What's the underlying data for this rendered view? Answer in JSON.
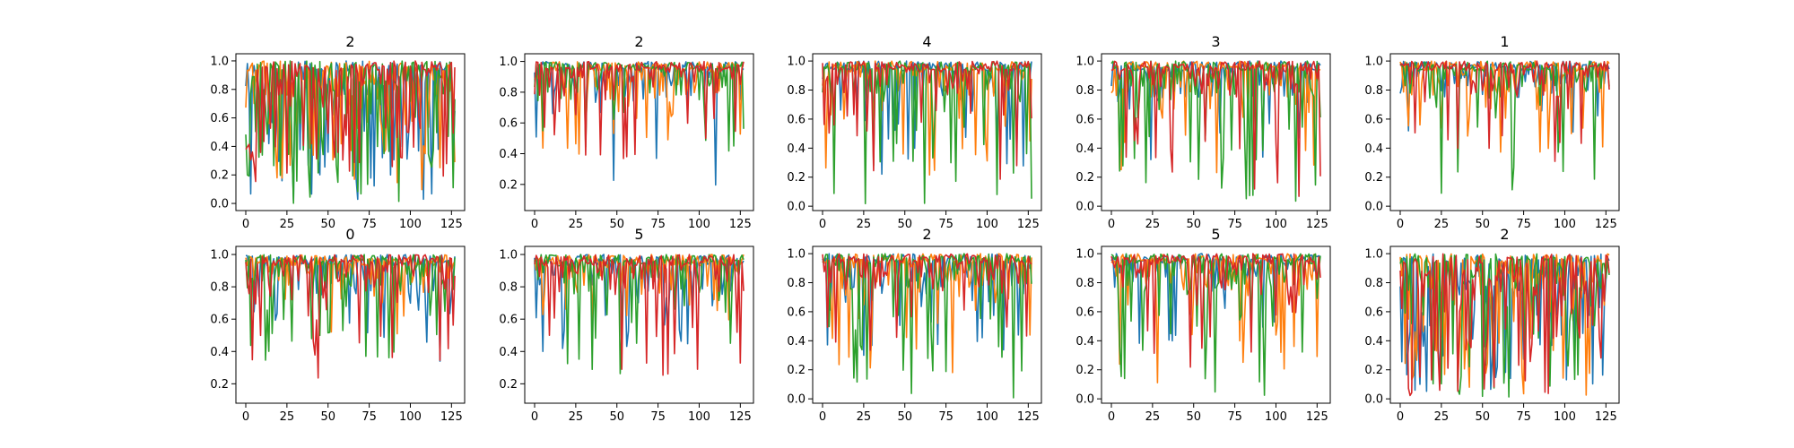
{
  "chart_data": [
    {
      "type": "line",
      "title": "2",
      "xlabel": "",
      "ylabel": "",
      "xlim": [
        -6,
        133
      ],
      "ylim": [
        -0.05,
        1.05
      ],
      "xticks": [
        0,
        25,
        50,
        75,
        100,
        125
      ],
      "yticks": [
        0.0,
        0.2,
        0.4,
        0.6,
        0.8,
        1.0
      ],
      "x": "integer steps 0-127",
      "series": [
        {
          "color": "#1f77b4",
          "pattern": "rapid oscillation, dips to ~0.02"
        },
        {
          "color": "#ff7f0e",
          "pattern": "rapid oscillation, dips to ~0.07"
        },
        {
          "color": "#2ca02c",
          "pattern": "rapid oscillation, dips to ~0.0"
        },
        {
          "color": "#d62728",
          "pattern": "rapid oscillation, dips to ~0.1"
        }
      ]
    },
    {
      "type": "line",
      "title": "2",
      "xlabel": "",
      "ylabel": "",
      "xlim": [
        -6,
        133
      ],
      "ylim": [
        0.03,
        1.05
      ],
      "xticks": [
        0,
        25,
        50,
        75,
        100,
        125
      ],
      "yticks": [
        0.2,
        0.4,
        0.6,
        0.8,
        1.0
      ],
      "x": "integer steps 0-127",
      "series": [
        {
          "color": "#1f77b4",
          "pattern": "mostly near 1.0, dips to ~0.09 near x=122"
        },
        {
          "color": "#ff7f0e",
          "pattern": "mostly 0.8-1.0, dips to ~0.33"
        },
        {
          "color": "#2ca02c",
          "pattern": "mostly 0.8-1.0, dips to ~0.3"
        },
        {
          "color": "#d62728",
          "pattern": "mostly 0.8-1.0, dips to ~0.36"
        }
      ]
    },
    {
      "type": "line",
      "title": "4",
      "xlabel": "",
      "ylabel": "",
      "xlim": [
        -6,
        133
      ],
      "ylim": [
        -0.03,
        1.05
      ],
      "xticks": [
        0,
        25,
        50,
        75,
        100,
        125
      ],
      "yticks": [
        0.0,
        0.2,
        0.4,
        0.6,
        0.8,
        1.0
      ],
      "x": "integer steps 0-127",
      "series": [
        {
          "color": "#1f77b4",
          "pattern": "mostly 0.6-1.0, dips to ~0.2"
        },
        {
          "color": "#ff7f0e",
          "pattern": "mostly 0.6-1.0, dips to ~0.2"
        },
        {
          "color": "#2ca02c",
          "pattern": "frequent deep dips to ~0.0"
        },
        {
          "color": "#d62728",
          "pattern": "mostly 0.6-1.0, dips to ~0.15"
        }
      ]
    },
    {
      "type": "line",
      "title": "3",
      "xlabel": "",
      "ylabel": "",
      "xlim": [
        -6,
        133
      ],
      "ylim": [
        -0.03,
        1.05
      ],
      "xticks": [
        0,
        25,
        50,
        75,
        100,
        125
      ],
      "yticks": [
        0.0,
        0.2,
        0.4,
        0.6,
        0.8,
        1.0
      ],
      "x": "integer steps 0-127",
      "series": [
        {
          "color": "#1f77b4",
          "pattern": "mostly 0.6-1.0, dips to ~0.3"
        },
        {
          "color": "#ff7f0e",
          "pattern": "mostly 0.6-1.0, dips to ~0.23"
        },
        {
          "color": "#2ca02c",
          "pattern": "deep dips to ~0.0 early, then 0.3-1.0"
        },
        {
          "color": "#d62728",
          "pattern": "dips to ~0.0 at start, then 0.4-1.0"
        }
      ]
    },
    {
      "type": "line",
      "title": "1",
      "xlabel": "",
      "ylabel": "",
      "xlim": [
        -6,
        133
      ],
      "ylim": [
        -0.03,
        1.05
      ],
      "xticks": [
        0,
        25,
        50,
        75,
        100,
        125
      ],
      "yticks": [
        0.0,
        0.2,
        0.4,
        0.6,
        0.8,
        1.0
      ],
      "x": "integer steps 0-127",
      "series": [
        {
          "color": "#1f77b4",
          "pattern": "mostly 0.8-1.0, dips to ~0.4"
        },
        {
          "color": "#ff7f0e",
          "pattern": "mostly 0.8-1.0, dips to ~0.25"
        },
        {
          "color": "#2ca02c",
          "pattern": "dips to ~0.0 at start, then near 1.0"
        },
        {
          "color": "#d62728",
          "pattern": "dips to ~0.25 early, then near 1.0"
        }
      ]
    },
    {
      "type": "line",
      "title": "0",
      "xlabel": "",
      "ylabel": "",
      "xlim": [
        -6,
        133
      ],
      "ylim": [
        0.08,
        1.05
      ],
      "xticks": [
        0,
        25,
        50,
        75,
        100,
        125
      ],
      "yticks": [
        0.2,
        0.4,
        0.6,
        0.8,
        1.0
      ],
      "x": "integer steps 0-127",
      "series": [
        {
          "color": "#1f77b4",
          "pattern": "dip to ~0.14 at x=0, then 0.6-1.0, dips to ~0.3"
        },
        {
          "color": "#ff7f0e",
          "pattern": "mostly 0.6-1.0, dips to ~0.3"
        },
        {
          "color": "#2ca02c",
          "pattern": "mostly 0.6-1.0, dips to ~0.33"
        },
        {
          "color": "#d62728",
          "pattern": "mostly 0.7-1.0, dips to ~0.22 late"
        }
      ]
    },
    {
      "type": "line",
      "title": "5",
      "xlabel": "",
      "ylabel": "",
      "xlim": [
        -6,
        133
      ],
      "ylim": [
        0.08,
        1.05
      ],
      "xticks": [
        0,
        25,
        50,
        75,
        100,
        125
      ],
      "yticks": [
        0.2,
        0.4,
        0.6,
        0.8,
        1.0
      ],
      "x": "integer steps 0-127",
      "series": [
        {
          "color": "#1f77b4",
          "pattern": "mostly 0.8-1.0, dips to ~0.35"
        },
        {
          "color": "#ff7f0e",
          "pattern": "mostly 0.8-1.0, dips to ~0.5"
        },
        {
          "color": "#2ca02c",
          "pattern": "dips to ~0.15 early, then 0.6-1.0"
        },
        {
          "color": "#d62728",
          "pattern": "dips to ~0.2 early, then 0.7-1.0"
        }
      ]
    },
    {
      "type": "line",
      "title": "2",
      "xlabel": "",
      "ylabel": "",
      "xlim": [
        -6,
        133
      ],
      "ylim": [
        -0.03,
        1.05
      ],
      "xticks": [
        0,
        25,
        50,
        75,
        100,
        125
      ],
      "yticks": [
        0.0,
        0.2,
        0.4,
        0.6,
        0.8,
        1.0
      ],
      "x": "integer steps 0-127",
      "series": [
        {
          "color": "#1f77b4",
          "pattern": "mostly 0.6-1.0, dips to ~0.3"
        },
        {
          "color": "#ff7f0e",
          "pattern": "mostly 0.5-1.0, dips to ~0.17"
        },
        {
          "color": "#2ca02c",
          "pattern": "deep dips to ~0.0 early, later to ~0.3"
        },
        {
          "color": "#d62728",
          "pattern": "mostly 0.5-1.0, dips to ~0.3"
        }
      ]
    },
    {
      "type": "line",
      "title": "5",
      "xlabel": "",
      "ylabel": "",
      "xlim": [
        -6,
        133
      ],
      "ylim": [
        -0.03,
        1.05
      ],
      "xticks": [
        0,
        25,
        50,
        75,
        100,
        125
      ],
      "yticks": [
        0.0,
        0.2,
        0.4,
        0.6,
        0.8,
        1.0
      ],
      "x": "integer steps 0-127",
      "series": [
        {
          "color": "#1f77b4",
          "pattern": "mostly 0.6-1.0, dips to ~0.3"
        },
        {
          "color": "#ff7f0e",
          "pattern": "mostly 0.6-1.0, dips to ~0.1"
        },
        {
          "color": "#2ca02c",
          "pattern": "deep dips to ~0.0 early, later ~0.2"
        },
        {
          "color": "#d62728",
          "pattern": "mostly 0.6-1.0, dips to ~0.2"
        }
      ]
    },
    {
      "type": "line",
      "title": "2",
      "xlabel": "",
      "ylabel": "",
      "xlim": [
        -6,
        133
      ],
      "ylim": [
        -0.03,
        1.05
      ],
      "xticks": [
        0,
        25,
        50,
        75,
        100,
        125
      ],
      "yticks": [
        0.0,
        0.2,
        0.4,
        0.6,
        0.8,
        1.0
      ],
      "x": "integer steps 0-127",
      "series": [
        {
          "color": "#1f77b4",
          "pattern": "rapid oscillation, dips to ~0.05"
        },
        {
          "color": "#ff7f0e",
          "pattern": "rapid oscillation, dips to ~0.02"
        },
        {
          "color": "#2ca02c",
          "pattern": "rapid oscillation, dips to ~0.0"
        },
        {
          "color": "#d62728",
          "pattern": "rapid oscillation, dips to ~0.02"
        }
      ]
    }
  ]
}
